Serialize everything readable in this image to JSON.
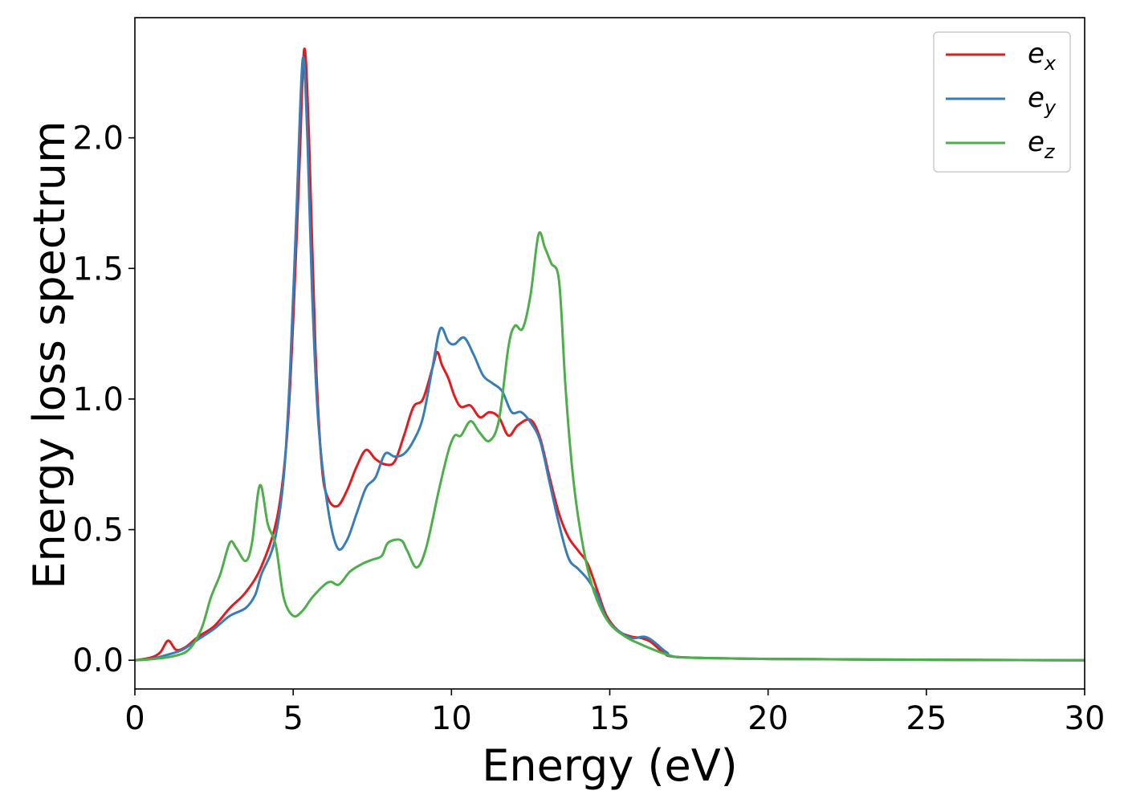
{
  "chart_data": {
    "type": "line",
    "xlabel": "Energy (eV)",
    "ylabel": "Energy loss spectrum",
    "xlim": [
      0,
      30
    ],
    "ylim": [
      -0.11,
      2.46
    ],
    "xticks": [
      0,
      5,
      10,
      15,
      20,
      25,
      30
    ],
    "yticks": [
      0.0,
      0.5,
      1.0,
      1.5,
      2.0
    ],
    "xtick_labels": [
      "0",
      "5",
      "10",
      "15",
      "20",
      "25",
      "30"
    ],
    "ytick_labels": [
      "0.0",
      "0.5",
      "1.0",
      "1.5",
      "2.0"
    ],
    "grid": false,
    "legend_position": "top-right",
    "series": [
      {
        "name": "e_x",
        "legend_base": "e",
        "legend_sub": "x",
        "color": "#e41a1c",
        "points": [
          [
            0,
            0
          ],
          [
            0.5,
            0.01
          ],
          [
            0.8,
            0.03
          ],
          [
            1.05,
            0.075
          ],
          [
            1.3,
            0.04
          ],
          [
            1.6,
            0.05
          ],
          [
            2,
            0.09
          ],
          [
            2.5,
            0.13
          ],
          [
            3,
            0.2
          ],
          [
            3.5,
            0.26
          ],
          [
            4,
            0.36
          ],
          [
            4.5,
            0.55
          ],
          [
            4.8,
            0.85
          ],
          [
            5.0,
            1.3
          ],
          [
            5.2,
            1.9
          ],
          [
            5.35,
            2.34
          ],
          [
            5.5,
            2.0
          ],
          [
            5.7,
            1.2
          ],
          [
            5.9,
            0.75
          ],
          [
            6.1,
            0.62
          ],
          [
            6.4,
            0.59
          ],
          [
            6.7,
            0.65
          ],
          [
            7.0,
            0.74
          ],
          [
            7.3,
            0.805
          ],
          [
            7.6,
            0.77
          ],
          [
            7.9,
            0.75
          ],
          [
            8.2,
            0.76
          ],
          [
            8.5,
            0.86
          ],
          [
            8.8,
            0.97
          ],
          [
            9.1,
            1.0
          ],
          [
            9.4,
            1.12
          ],
          [
            9.55,
            1.18
          ],
          [
            9.7,
            1.13
          ],
          [
            9.9,
            1.08
          ],
          [
            10.1,
            1.01
          ],
          [
            10.3,
            0.97
          ],
          [
            10.6,
            0.975
          ],
          [
            10.9,
            0.93
          ],
          [
            11.2,
            0.95
          ],
          [
            11.5,
            0.93
          ],
          [
            11.8,
            0.86
          ],
          [
            12.1,
            0.9
          ],
          [
            12.5,
            0.92
          ],
          [
            12.8,
            0.85
          ],
          [
            13.1,
            0.7
          ],
          [
            13.4,
            0.56
          ],
          [
            13.7,
            0.47
          ],
          [
            14.0,
            0.42
          ],
          [
            14.3,
            0.37
          ],
          [
            14.6,
            0.27
          ],
          [
            14.9,
            0.17
          ],
          [
            15.3,
            0.11
          ],
          [
            15.7,
            0.09
          ],
          [
            16.0,
            0.085
          ],
          [
            16.3,
            0.07
          ],
          [
            16.7,
            0.03
          ],
          [
            17.2,
            0.012
          ],
          [
            20,
            0.005
          ],
          [
            25,
            0.002
          ],
          [
            30,
            0.0
          ]
        ]
      },
      {
        "name": "e_y",
        "legend_base": "e",
        "legend_sub": "y",
        "color": "#377eb8",
        "points": [
          [
            0,
            0
          ],
          [
            0.5,
            0.005
          ],
          [
            1.0,
            0.02
          ],
          [
            1.5,
            0.04
          ],
          [
            2,
            0.08
          ],
          [
            2.5,
            0.12
          ],
          [
            3,
            0.17
          ],
          [
            3.5,
            0.2
          ],
          [
            3.8,
            0.25
          ],
          [
            4,
            0.33
          ],
          [
            4.4,
            0.45
          ],
          [
            4.7,
            0.7
          ],
          [
            4.9,
            1.1
          ],
          [
            5.1,
            1.7
          ],
          [
            5.3,
            2.3
          ],
          [
            5.45,
            2.0
          ],
          [
            5.6,
            1.4
          ],
          [
            5.8,
            0.9
          ],
          [
            6.1,
            0.58
          ],
          [
            6.4,
            0.43
          ],
          [
            6.7,
            0.46
          ],
          [
            7.0,
            0.56
          ],
          [
            7.3,
            0.66
          ],
          [
            7.6,
            0.7
          ],
          [
            7.9,
            0.79
          ],
          [
            8.2,
            0.78
          ],
          [
            8.5,
            0.79
          ],
          [
            8.8,
            0.84
          ],
          [
            9.1,
            0.93
          ],
          [
            9.4,
            1.12
          ],
          [
            9.65,
            1.27
          ],
          [
            9.9,
            1.22
          ],
          [
            10.1,
            1.21
          ],
          [
            10.4,
            1.235
          ],
          [
            10.7,
            1.17
          ],
          [
            11.0,
            1.09
          ],
          [
            11.3,
            1.06
          ],
          [
            11.6,
            1.03
          ],
          [
            11.9,
            0.95
          ],
          [
            12.2,
            0.95
          ],
          [
            12.5,
            0.91
          ],
          [
            12.8,
            0.84
          ],
          [
            13.1,
            0.68
          ],
          [
            13.4,
            0.52
          ],
          [
            13.7,
            0.39
          ],
          [
            14.0,
            0.35
          ],
          [
            14.3,
            0.31
          ],
          [
            14.6,
            0.25
          ],
          [
            14.9,
            0.16
          ],
          [
            15.3,
            0.11
          ],
          [
            15.7,
            0.085
          ],
          [
            16.1,
            0.09
          ],
          [
            16.4,
            0.07
          ],
          [
            16.8,
            0.03
          ],
          [
            17.2,
            0.012
          ],
          [
            20,
            0.005
          ],
          [
            25,
            0.002
          ],
          [
            30,
            0.0
          ]
        ]
      },
      {
        "name": "e_z",
        "legend_base": "e",
        "legend_sub": "z",
        "color": "#4daf4a",
        "points": [
          [
            0,
            0
          ],
          [
            0.6,
            0.005
          ],
          [
            1.2,
            0.015
          ],
          [
            1.7,
            0.04
          ],
          [
            2.1,
            0.12
          ],
          [
            2.4,
            0.24
          ],
          [
            2.7,
            0.33
          ],
          [
            3.0,
            0.45
          ],
          [
            3.2,
            0.43
          ],
          [
            3.5,
            0.38
          ],
          [
            3.7,
            0.45
          ],
          [
            3.95,
            0.67
          ],
          [
            4.2,
            0.52
          ],
          [
            4.45,
            0.44
          ],
          [
            4.7,
            0.24
          ],
          [
            5.0,
            0.17
          ],
          [
            5.3,
            0.19
          ],
          [
            5.6,
            0.24
          ],
          [
            6.0,
            0.29
          ],
          [
            6.2,
            0.3
          ],
          [
            6.45,
            0.29
          ],
          [
            6.8,
            0.34
          ],
          [
            7.2,
            0.37
          ],
          [
            7.5,
            0.385
          ],
          [
            7.8,
            0.4
          ],
          [
            8.0,
            0.45
          ],
          [
            8.4,
            0.46
          ],
          [
            8.6,
            0.42
          ],
          [
            8.9,
            0.355
          ],
          [
            9.2,
            0.43
          ],
          [
            9.6,
            0.65
          ],
          [
            9.9,
            0.8
          ],
          [
            10.1,
            0.86
          ],
          [
            10.3,
            0.86
          ],
          [
            10.6,
            0.915
          ],
          [
            10.9,
            0.87
          ],
          [
            11.2,
            0.84
          ],
          [
            11.5,
            0.92
          ],
          [
            11.8,
            1.2
          ],
          [
            12.0,
            1.28
          ],
          [
            12.25,
            1.27
          ],
          [
            12.5,
            1.4
          ],
          [
            12.75,
            1.63
          ],
          [
            12.95,
            1.58
          ],
          [
            13.15,
            1.52
          ],
          [
            13.4,
            1.45
          ],
          [
            13.6,
            1.05
          ],
          [
            13.8,
            0.75
          ],
          [
            14.0,
            0.55
          ],
          [
            14.3,
            0.35
          ],
          [
            14.6,
            0.23
          ],
          [
            15.0,
            0.14
          ],
          [
            15.5,
            0.09
          ],
          [
            16.0,
            0.06
          ],
          [
            16.5,
            0.035
          ],
          [
            17.0,
            0.015
          ],
          [
            17.5,
            0.01
          ],
          [
            20,
            0.005
          ],
          [
            25,
            0.002
          ],
          [
            30,
            0.0
          ]
        ]
      }
    ]
  }
}
